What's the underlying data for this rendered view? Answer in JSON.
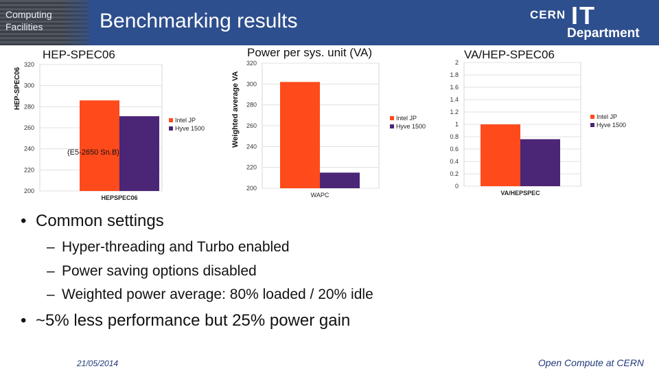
{
  "header": {
    "department": "Computing Facilities",
    "title": "Benchmarking results",
    "logo": {
      "cern": "CERN",
      "it": "IT",
      "department": "Department"
    }
  },
  "panels": {
    "hepspec": {
      "title": "HEP-SPEC06",
      "axis_label": "HEP-SPEC06",
      "annotation": "(E5-2650 Sn.B)"
    },
    "power": {
      "title": "Power per sys. unit (VA)",
      "axis_label": "Weighted average VA"
    },
    "ratio": {
      "title": "VA/HEP-SPEC06"
    }
  },
  "colors": {
    "intel": "#ff4a1c",
    "hyve": "#4b2576",
    "header": "#2e4f8e"
  },
  "chart_data": [
    {
      "type": "bar",
      "title": "HEP-SPEC06",
      "ylabel": "HEP-SPEC06",
      "categories": [
        "HEPSPEC06"
      ],
      "ylim": [
        200,
        320
      ],
      "yticks": [
        200,
        220,
        240,
        260,
        280,
        300,
        320
      ],
      "grid": true,
      "legend": "right",
      "series": [
        {
          "name": "Intel JP",
          "values": [
            286
          ]
        },
        {
          "name": "Hyve 1500",
          "values": [
            271
          ]
        }
      ]
    },
    {
      "type": "bar",
      "title": "Power per sys. unit (VA)",
      "ylabel": "Weighted average VA",
      "categories": [
        "WAPC"
      ],
      "ylim": [
        200,
        320
      ],
      "yticks": [
        200,
        220,
        240,
        260,
        280,
        300,
        320
      ],
      "grid": true,
      "legend": "right",
      "series": [
        {
          "name": "Intel JP",
          "values": [
            302
          ]
        },
        {
          "name": "Hyve 1500",
          "values": [
            215
          ]
        }
      ]
    },
    {
      "type": "bar",
      "title": "VA/HEP-SPEC06",
      "categories": [
        "VA/HEPSPEC"
      ],
      "ylim": [
        0,
        2
      ],
      "yticks": [
        0,
        0.2,
        0.4,
        0.6,
        0.8,
        1,
        1.2,
        1.4,
        1.6,
        1.8,
        2
      ],
      "grid": true,
      "legend": "right",
      "series": [
        {
          "name": "Intel JP",
          "values": [
            1.0
          ]
        },
        {
          "name": "Hyve 1500",
          "values": [
            0.76
          ]
        }
      ]
    }
  ],
  "bullets": {
    "main1": "Common settings",
    "sub": [
      "Hyper-threading and Turbo enabled",
      "Power saving options disabled",
      "Weighted power average: 80% loaded / 20% idle"
    ],
    "main2": "~5% less performance but 25% power gain",
    "bullet_char": "•",
    "dash_char": "–"
  },
  "footer": {
    "date": "21/05/2014",
    "right": "Open Compute at CERN"
  }
}
